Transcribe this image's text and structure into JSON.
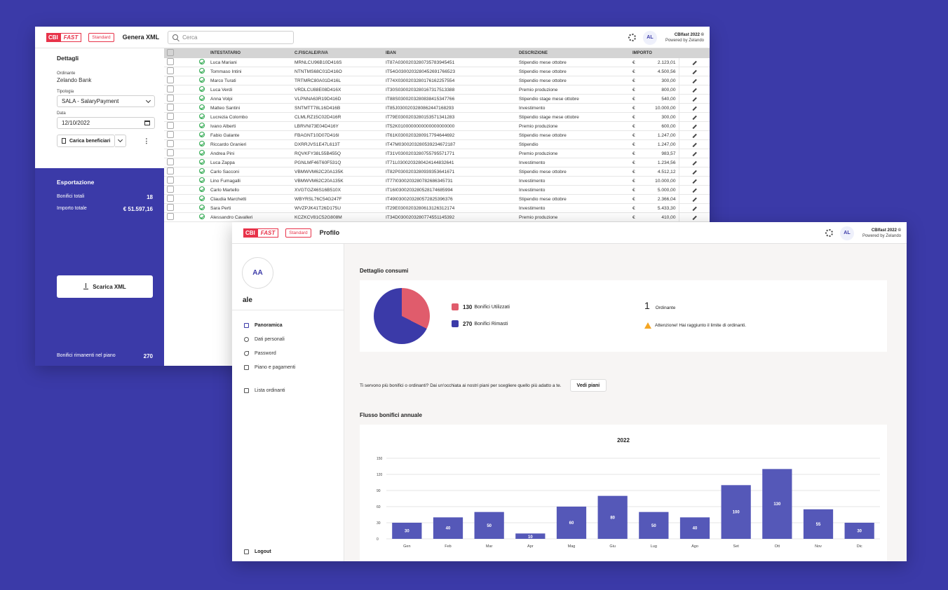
{
  "win1": {
    "logo": {
      "cbi": "CBI",
      "fast": "FAST"
    },
    "plan_badge": "Standard",
    "title": "Genera XML",
    "search_placeholder": "Cerca",
    "avatar": "AL",
    "brand": {
      "name": "CBIfast 2022 ©",
      "powered": "Powered by Zelando"
    },
    "details": {
      "heading": "Dettagli",
      "ordinante_label": "Ordinante",
      "ordinante_value": "Zelando Bank",
      "tipologia_label": "Tipologia",
      "tipologia_value": "SALA - SalaryPayment",
      "data_label": "Data",
      "data_value": "12/10/2022",
      "upload_button": "Carica beneficiari"
    },
    "export": {
      "heading": "Esportazione",
      "bonifici_label": "Bonifici totali",
      "bonifici_value": "18",
      "importo_label": "Importo totale",
      "importo_value": "€ 51.597,16",
      "download_button": "Scarica XML",
      "remaining_label": "Bonifici rimanenti nel piano",
      "remaining_value": "270"
    },
    "table": {
      "headers": [
        "INTESTATARIO",
        "C.FISCALE/P.IVA",
        "IBAN",
        "DESCRIZIONE",
        "IMPORTO"
      ],
      "currency": "€",
      "rows": [
        [
          "Luca Mariani",
          "MRNLCU96B10D416S",
          "IT87A0300203280735783945451",
          "Stipendio mese ottobre",
          "2.123,01"
        ],
        [
          "Tommaso Intini",
          "NTNTMS68C01D416O",
          "IT54G0300203280452691766523",
          "Stipendio mese ottobre",
          "4.500,56"
        ],
        [
          "Marco Turati",
          "TRTMRC80A01D416L",
          "IT74X0300203280176162257554",
          "Stipendio mese ottobre",
          "300,00"
        ],
        [
          "Luca Verdi",
          "VRDLCU88E08D416X",
          "IT30S0300203280167317513388",
          "Premio produzione",
          "800,00"
        ],
        [
          "Anna Volpi",
          "VLPNNA63R19D416D",
          "IT88S0300203280838415347766",
          "Stipendio stage mese ottobre",
          "540,00"
        ],
        [
          "Matteo Santini",
          "SNTMTT78L16D416B",
          "IT85J0300203280862447168293",
          "Investimento",
          "10.000,00"
        ],
        [
          "Lucrezia Colombo",
          "CLMLRZ15C02D416R",
          "IT79E0300203280153571341283",
          "Stipendio stage mese ottobre",
          "300,00"
        ],
        [
          "Ivano Alberti",
          "LBRVNI73E04D416Y",
          "IT52K0100000000000000000000",
          "Premio produzione",
          "600,00"
        ],
        [
          "Fabio Galante",
          "FBAGNT10D07D416I",
          "IT61K0300203280917794644692",
          "Stipendio mese ottobre",
          "1.247,00"
        ],
        [
          "Riccardo Granieri",
          "DXRRJVS1E47L613T",
          "IT47M0300203280539234672187",
          "Stipendio",
          "1.247,00"
        ],
        [
          "Andrea Pini",
          "RQVKFY38L55B455Q",
          "IT31V0300203280755795571771",
          "Premio produzione",
          "983,57"
        ],
        [
          "Luca Zappa",
          "PGNLMF46T60F531Q",
          "IT71L0300203280424144832641",
          "Investimento",
          "1.234,56"
        ],
        [
          "Carlo Sacconi",
          "VBMWVM62C20A135K",
          "IT82P0300203280939353641671",
          "Stipendio mese ottobre",
          "4.512,12"
        ],
        [
          "Lino Fumagalli",
          "VBMWVM62C20A135K",
          "IT77I0300203280782686345731",
          "Investimento",
          "10.000,00"
        ],
        [
          "Carlo Martello",
          "XVGTGZ46S16B510X",
          "IT16I0300203280528174685994",
          "Investimento",
          "5.000,00"
        ],
        [
          "Claudia Marchetti",
          "WBYRSL76C54G247F",
          "IT49I0300203280572825396376",
          "Stipendio mese ottobre",
          "2.366,04"
        ],
        [
          "Sara Perti",
          "WVZPJK41T26D175U",
          "IT29E0300203280613126312174",
          "Investimento",
          "5.433,30"
        ],
        [
          "Alessandro Cavalleri",
          "KCZKCV81C52G808M",
          "IT34D0300203280774551145392",
          "Premio produzione",
          "410,00"
        ]
      ]
    }
  },
  "win2": {
    "logo": {
      "cbi": "CBI",
      "fast": "FAST"
    },
    "plan_badge": "Standard",
    "title": "Profilo",
    "avatar": "AL",
    "brand": {
      "name": "CBIfast 2022 ©",
      "powered": "Powered by Zelando"
    },
    "profile": {
      "initials": "AA",
      "username": "ale"
    },
    "nav": [
      "Panoramica",
      "Dati personali",
      "Password",
      "Piano e pagamenti",
      "Lista ordinanti"
    ],
    "logout": "Logout",
    "consumi": {
      "heading": "Dettaglio consumi",
      "used_value": "130",
      "used_label": "Bonifici Utilizzati",
      "remaining_value": "270",
      "remaining_label": "Bonifici Rimasti",
      "used_color": "#e05c6c",
      "remaining_color": "#3b3aa8",
      "ordinanti_count": "1",
      "ordinanti_label": "Ordinante",
      "warning": "Attenzione! Hai raggiunto il limite di ordinanti."
    },
    "upsell": {
      "text": "Ti servono più bonifici o ordinanti? Dai un'occhiata ai nostri piani per scegliere quello più adatto a te.",
      "button": "Vedi piani"
    },
    "flusso_heading": "Flusso bonifici annuale"
  },
  "chart_data": {
    "type": "bar",
    "title": "2022",
    "categories": [
      "Gen",
      "Feb",
      "Mar",
      "Apr",
      "Mag",
      "Giu",
      "Lug",
      "Ago",
      "Set",
      "Ott",
      "Nov",
      "Dic"
    ],
    "values": [
      30,
      40,
      50,
      10,
      60,
      80,
      50,
      40,
      100,
      130,
      55,
      30
    ],
    "ylim": [
      0,
      150
    ],
    "yticks": [
      0,
      30,
      60,
      90,
      120,
      150
    ],
    "grid": true,
    "bar_color": "#5558b8"
  }
}
